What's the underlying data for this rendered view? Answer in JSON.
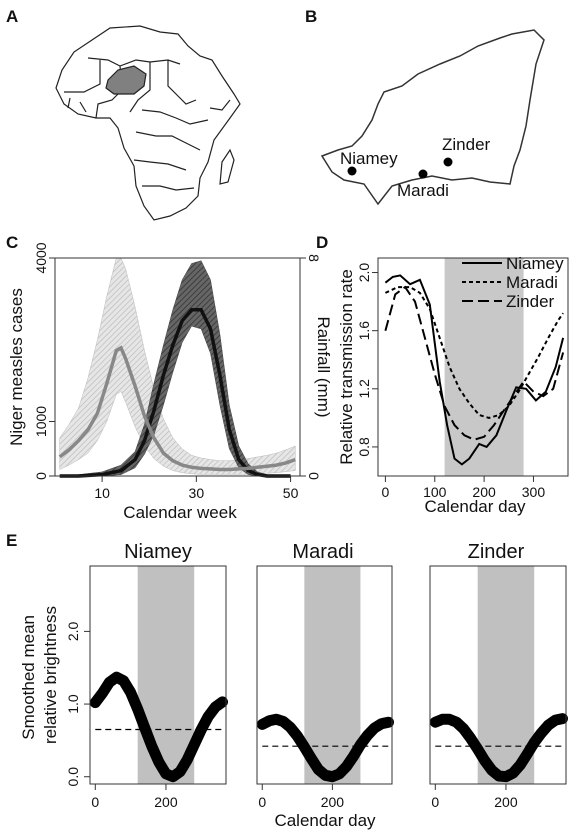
{
  "panel_labels": [
    "A",
    "B",
    "C",
    "D",
    "E"
  ],
  "map_a": {
    "highlight_color": "#808080"
  },
  "map_b": {
    "cities": [
      {
        "name": "Niamey"
      },
      {
        "name": "Maradi"
      },
      {
        "name": "Zinder"
      }
    ]
  },
  "chart_data": [
    {
      "panel": "C",
      "type": "line",
      "xlabel": "Calendar week",
      "ylabel": "Niger measles cases",
      "ylabel_right": "Rainfall (mm)",
      "x_ticks": [
        10,
        30,
        50
      ],
      "y_ticks": [
        0,
        1000,
        4000
      ],
      "y2_ticks": [
        0,
        8
      ],
      "xlim": [
        0,
        52
      ],
      "ylim": [
        0,
        4000
      ],
      "y2lim": [
        0,
        8
      ],
      "series": [
        {
          "axis": "left",
          "color": "#888888",
          "x": [
            1,
            3,
            5,
            7,
            9,
            11,
            13,
            14,
            15,
            17,
            19,
            21,
            23,
            25,
            27,
            29,
            31,
            33,
            35,
            37,
            39,
            41,
            43,
            45,
            47,
            49,
            51
          ],
          "values": [
            350,
            480,
            650,
            850,
            1150,
            1700,
            2300,
            2350,
            2150,
            1650,
            1100,
            700,
            420,
            280,
            200,
            160,
            140,
            130,
            120,
            120,
            130,
            140,
            160,
            180,
            200,
            240,
            300
          ],
          "band_low": [
            120,
            200,
            300,
            420,
            650,
            1000,
            1500,
            1550,
            1350,
            900,
            550,
            320,
            180,
            100,
            60,
            40,
            30,
            30,
            30,
            30,
            30,
            30,
            40,
            50,
            60,
            80,
            100
          ],
          "band_high": [
            700,
            950,
            1250,
            1800,
            2500,
            3300,
            4000,
            4000,
            3800,
            3100,
            2300,
            1600,
            1050,
            700,
            500,
            380,
            330,
            300,
            280,
            280,
            300,
            320,
            350,
            380,
            420,
            480,
            550
          ]
        },
        {
          "axis": "right",
          "color": "#111111",
          "x": [
            1,
            5,
            10,
            14,
            17,
            19,
            21,
            23,
            25,
            27,
            29,
            31,
            33,
            35,
            37,
            39,
            41,
            43,
            45,
            50
          ],
          "values": [
            0,
            0,
            0.05,
            0.2,
            0.6,
            1.3,
            2.4,
            3.7,
            4.8,
            5.7,
            6.1,
            6.1,
            5.4,
            3.7,
            1.7,
            0.6,
            0.2,
            0.05,
            0,
            0
          ],
          "band_low": [
            0,
            0,
            0,
            0.05,
            0.3,
            0.8,
            1.5,
            2.6,
            3.8,
            4.9,
            5.5,
            5.4,
            4.5,
            2.6,
            1.0,
            0.3,
            0.05,
            0,
            0,
            0
          ],
          "band_high": [
            0,
            0.05,
            0.15,
            0.4,
            0.9,
            1.9,
            3.4,
            4.8,
            6.1,
            7.2,
            7.8,
            7.9,
            7.2,
            5.2,
            2.6,
            1.1,
            0.45,
            0.15,
            0.05,
            0
          ]
        }
      ]
    },
    {
      "panel": "D",
      "type": "line",
      "xlabel": "Calendar day",
      "ylabel": "Relative transmission rate",
      "x_ticks": [
        0,
        100,
        200,
        300
      ],
      "y_ticks": [
        0.8,
        1.2,
        1.6,
        2.0
      ],
      "xlim": [
        -15,
        370
      ],
      "ylim": [
        0.6,
        2.1
      ],
      "shaded_x": [
        120,
        280
      ],
      "legend": "top-right",
      "series": [
        {
          "name": "Niamey",
          "dash": "",
          "x": [
            0,
            15,
            30,
            50,
            70,
            90,
            110,
            125,
            140,
            155,
            170,
            190,
            205,
            225,
            245,
            265,
            285,
            305,
            325,
            345,
            360
          ],
          "values": [
            1.93,
            1.97,
            1.98,
            1.92,
            1.95,
            1.78,
            1.25,
            0.95,
            0.72,
            0.68,
            0.72,
            0.82,
            0.8,
            0.88,
            1.05,
            1.21,
            1.2,
            1.12,
            1.18,
            1.35,
            1.55
          ]
        },
        {
          "name": "Maradi",
          "dash": "4,3",
          "x": [
            0,
            25,
            50,
            70,
            90,
            110,
            130,
            150,
            170,
            190,
            210,
            230,
            250,
            270,
            290,
            310,
            330,
            350,
            360
          ],
          "values": [
            1.86,
            1.9,
            1.9,
            1.86,
            1.75,
            1.55,
            1.35,
            1.2,
            1.1,
            1.02,
            1.0,
            1.02,
            1.08,
            1.18,
            1.3,
            1.42,
            1.55,
            1.67,
            1.72
          ]
        },
        {
          "name": "Zinder",
          "dash": "11,5",
          "x": [
            0,
            20,
            40,
            60,
            80,
            100,
            120,
            140,
            160,
            180,
            200,
            220,
            240,
            260,
            280,
            300,
            320,
            340,
            360
          ],
          "values": [
            1.6,
            1.85,
            1.9,
            1.8,
            1.55,
            1.3,
            1.08,
            0.95,
            0.88,
            0.85,
            0.87,
            0.95,
            1.05,
            1.15,
            1.25,
            1.18,
            1.15,
            1.2,
            1.45
          ]
        }
      ]
    },
    {
      "panel": "E",
      "type": "line",
      "title": "Niamey",
      "xlabel": "Calendar day",
      "ylabel": "Smoothed mean relative brightness",
      "x_ticks": [
        0,
        200
      ],
      "y_ticks": [
        0.0,
        1.0,
        2.0
      ],
      "xlim": [
        -15,
        370
      ],
      "ylim": [
        -0.1,
        2.9
      ],
      "shaded_x": [
        120,
        280
      ],
      "series": [
        {
          "x": [
            0,
            20,
            40,
            60,
            80,
            100,
            120,
            140,
            160,
            180,
            200,
            220,
            240,
            260,
            280,
            300,
            320,
            340,
            360
          ],
          "values": [
            1.02,
            1.15,
            1.3,
            1.37,
            1.32,
            1.16,
            0.93,
            0.67,
            0.42,
            0.2,
            0.04,
            0.0,
            0.07,
            0.23,
            0.44,
            0.65,
            0.83,
            0.96,
            1.03
          ]
        },
        {
          "x": [
            0,
            360
          ],
          "values": [
            0.65,
            0.65
          ],
          "dash": "6,4"
        }
      ]
    },
    {
      "panel": "E",
      "type": "line",
      "title": "Maradi",
      "xlabel": "Calendar day",
      "x_ticks": [
        0,
        200
      ],
      "xlim": [
        -15,
        370
      ],
      "ylim": [
        -0.1,
        2.9
      ],
      "shaded_x": [
        120,
        280
      ],
      "series": [
        {
          "x": [
            0,
            20,
            40,
            60,
            80,
            100,
            120,
            140,
            160,
            180,
            200,
            220,
            240,
            260,
            280,
            300,
            320,
            340,
            360
          ],
          "values": [
            0.72,
            0.77,
            0.79,
            0.76,
            0.68,
            0.56,
            0.41,
            0.25,
            0.1,
            0.02,
            0.0,
            0.04,
            0.14,
            0.28,
            0.44,
            0.57,
            0.67,
            0.73,
            0.75
          ]
        },
        {
          "x": [
            0,
            360
          ],
          "values": [
            0.42,
            0.42
          ],
          "dash": "6,4"
        }
      ]
    },
    {
      "panel": "E",
      "type": "line",
      "title": "Zinder",
      "xlabel": "Calendar day",
      "x_ticks": [
        0,
        200
      ],
      "xlim": [
        -15,
        370
      ],
      "ylim": [
        -0.1,
        2.9
      ],
      "shaded_x": [
        120,
        280
      ],
      "series": [
        {
          "x": [
            0,
            20,
            40,
            60,
            80,
            100,
            120,
            140,
            160,
            180,
            200,
            220,
            240,
            260,
            280,
            300,
            320,
            340,
            360
          ],
          "values": [
            0.75,
            0.79,
            0.79,
            0.75,
            0.66,
            0.53,
            0.38,
            0.22,
            0.09,
            0.01,
            0.0,
            0.05,
            0.16,
            0.31,
            0.47,
            0.6,
            0.71,
            0.78,
            0.8
          ]
        },
        {
          "x": [
            0,
            360
          ],
          "values": [
            0.42,
            0.42
          ],
          "dash": "6,4"
        }
      ]
    }
  ]
}
